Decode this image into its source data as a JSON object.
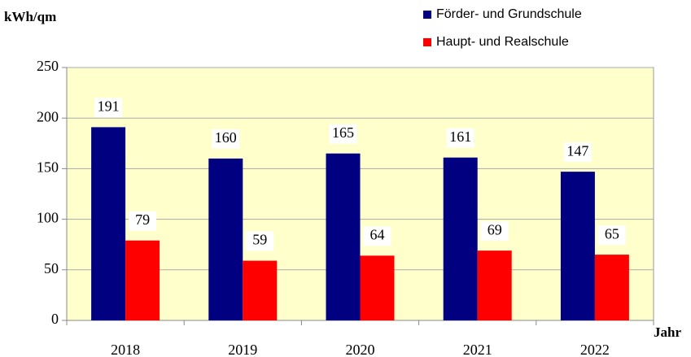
{
  "chart_data": {
    "type": "bar",
    "y_axis_label": "kWh/qm",
    "x_axis_label": "Jahr",
    "categories": [
      "2018",
      "2019",
      "2020",
      "2021",
      "2022"
    ],
    "series": [
      {
        "name": "Förder- und Grundschule",
        "color": "#000080",
        "values": [
          191,
          160,
          165,
          161,
          147
        ]
      },
      {
        "name": "Haupt- und Realschule",
        "color": "#ff0000",
        "values": [
          79,
          59,
          64,
          69,
          65
        ]
      }
    ],
    "ylim": [
      0,
      250
    ],
    "yticks": [
      0,
      50,
      100,
      150,
      200,
      250
    ],
    "grid": true,
    "plot_background": "#ffffcc",
    "legend": "top-right"
  }
}
